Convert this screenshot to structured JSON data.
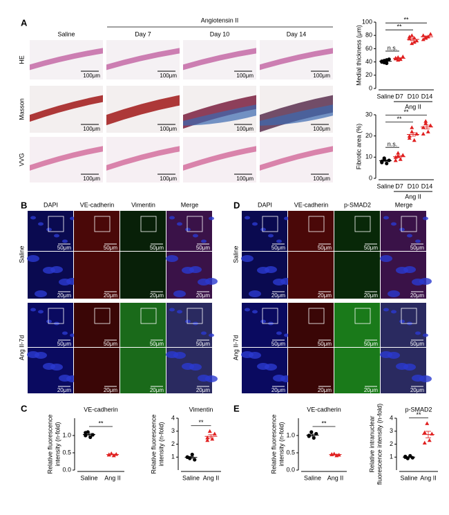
{
  "panel_a": {
    "label": "A",
    "treatment": "Angiotensin II",
    "columns": [
      "Saline",
      "Day 7",
      "Day 10",
      "Day 14"
    ],
    "rows": [
      "HE",
      "Masson",
      "VVG"
    ],
    "scale_bar": "100μm"
  },
  "panel_b": {
    "label": "B",
    "columns": [
      "DAPI",
      "VE-cadherin",
      "Vimentin",
      "Merge"
    ],
    "rows": [
      "Saline",
      "Ang II-7d"
    ],
    "scale_bars": [
      "50μm",
      "20μm"
    ]
  },
  "panel_c": {
    "label": "C"
  },
  "panel_d": {
    "label": "D",
    "columns": [
      "DAPI",
      "VE-cadherin",
      "p-SMAD2",
      "Merge"
    ],
    "rows": [
      "Saline",
      "Ang II-7d"
    ],
    "scale_bars": [
      "50μm",
      "20μm"
    ]
  },
  "panel_e": {
    "label": "E"
  },
  "chart_data": [
    {
      "type": "dot",
      "ylabel": [
        "Medial thickness (μm)"
      ],
      "ylim": [
        0,
        100
      ],
      "yticks": [
        0,
        20,
        40,
        60,
        80,
        100
      ],
      "categories": [
        "Saline",
        "D7",
        "D10",
        "D14"
      ],
      "group_label": "Ang II",
      "colors": [
        "#000000",
        "#e02020",
        "#e02020",
        "#e02020"
      ],
      "markers": [
        "circle",
        "triangle",
        "triangle",
        "triangle"
      ],
      "values": [
        [
          40,
          42,
          38,
          44,
          41,
          39,
          43
        ],
        [
          45,
          47,
          44,
          48,
          46,
          43
        ],
        [
          75,
          80,
          70,
          72,
          78,
          68,
          76
        ],
        [
          80,
          76,
          78,
          82,
          74,
          77
        ]
      ],
      "means": [
        41,
        45.5,
        74,
        78
      ],
      "sems": [
        1,
        0.8,
        2,
        1.2
      ],
      "comparisons": [
        {
          "label": "n.s.",
          "between": [
            "Saline",
            "D7"
          ]
        },
        {
          "label": "**",
          "between": [
            "Saline",
            "D10"
          ]
        },
        {
          "label": "**",
          "between": [
            "Saline",
            "D14"
          ]
        }
      ]
    },
    {
      "type": "dot",
      "ylabel": [
        "Fibrotic area (%)"
      ],
      "ylim": [
        0,
        30
      ],
      "yticks": [
        0,
        10,
        20,
        30
      ],
      "categories": [
        "Saline",
        "D7",
        "D10",
        "D14"
      ],
      "group_label": "Ang II",
      "colors": [
        "#000000",
        "#e02020",
        "#e02020",
        "#e02020"
      ],
      "markers": [
        "circle",
        "triangle",
        "triangle",
        "triangle"
      ],
      "values": [
        [
          8,
          9,
          7,
          8.5,
          7.5,
          9.5
        ],
        [
          10,
          12,
          9,
          11,
          8.5,
          10.5
        ],
        [
          20,
          22,
          18,
          21,
          19,
          24
        ],
        [
          24,
          26,
          22,
          25,
          21,
          27
        ]
      ],
      "means": [
        8.3,
        10.2,
        20.7,
        24.2
      ],
      "sems": [
        0.4,
        0.5,
        0.8,
        0.9
      ],
      "comparisons": [
        {
          "label": "n.s.",
          "between": [
            "Saline",
            "D7"
          ]
        },
        {
          "label": "**",
          "between": [
            "Saline",
            "D10"
          ]
        },
        {
          "label": "**",
          "between": [
            "Saline",
            "D14"
          ]
        }
      ]
    },
    {
      "type": "dot",
      "title": "VE-cadherin",
      "ylabel": [
        "Relative fluorescence",
        "intensity (n-fold)"
      ],
      "ylim": [
        0,
        1.5
      ],
      "yticks": [
        {
          "value": 0,
          "label": "0.0"
        },
        0.5,
        {
          "value": 1,
          "label": "1.0"
        }
      ],
      "categories": [
        "Saline",
        "Ang II"
      ],
      "colors": [
        "#000000",
        "#e02020"
      ],
      "markers": [
        "circle",
        "triangle"
      ],
      "values": [
        [
          1.0,
          1.1,
          0.95,
          1.02,
          1.08
        ],
        [
          0.45,
          0.48,
          0.42,
          0.46,
          0.44
        ]
      ],
      "means": [
        1.03,
        0.45
      ],
      "sems": [
        0.03,
        0.01
      ],
      "comparisons": [
        {
          "label": "**",
          "between": [
            "Saline",
            "Ang II"
          ]
        }
      ]
    },
    {
      "type": "dot",
      "title": "Vimentin",
      "ylabel": [
        "Relative fluorescence",
        "intensity (n-fold)"
      ],
      "ylim": [
        0,
        4
      ],
      "yticks": [
        1,
        2,
        3,
        4
      ],
      "categories": [
        "Saline",
        "Ang II"
      ],
      "colors": [
        "#000000",
        "#e02020"
      ],
      "markers": [
        "circle",
        "triangle"
      ],
      "values": [
        [
          1.0,
          0.9,
          1.2,
          0.8,
          1.0
        ],
        [
          2.5,
          3.0,
          2.4,
          2.8,
          2.3
        ]
      ],
      "means": [
        0.98,
        2.6
      ],
      "sems": [
        0.07,
        0.13
      ],
      "comparisons": [
        {
          "label": "**",
          "between": [
            "Saline",
            "Ang II"
          ]
        }
      ]
    },
    {
      "type": "dot",
      "title": "VE-cadherin",
      "ylabel": [
        "Relative fluorescence",
        "intensity (n-fold)"
      ],
      "ylim": [
        0,
        1.5
      ],
      "yticks": [
        {
          "value": 0,
          "label": "0.0"
        },
        0.5,
        {
          "value": 1,
          "label": "1.0"
        }
      ],
      "categories": [
        "Saline",
        "Ang II"
      ],
      "colors": [
        "#000000",
        "#e02020"
      ],
      "markers": [
        "circle",
        "triangle"
      ],
      "values": [
        [
          1.0,
          1.1,
          0.93,
          1.05,
          0.98
        ],
        [
          0.45,
          0.47,
          0.42,
          0.44,
          0.46
        ]
      ],
      "means": [
        1.01,
        0.45
      ],
      "sems": [
        0.03,
        0.01
      ],
      "comparisons": [
        {
          "label": "**",
          "between": [
            "Saline",
            "Ang II"
          ]
        }
      ]
    },
    {
      "type": "dot",
      "title": "p-SMAD2",
      "ylabel": [
        "Relative intranuclear",
        "fluorescence intensity (n-fold)"
      ],
      "ylim": [
        0,
        4
      ],
      "yticks": [
        1,
        2,
        3,
        4
      ],
      "categories": [
        "Saline",
        "Ang II"
      ],
      "colors": [
        "#000000",
        "#e02020"
      ],
      "markers": [
        "circle",
        "triangle"
      ],
      "values": [
        [
          1.0,
          0.9,
          1.1,
          0.95,
          1.05
        ],
        [
          2.9,
          3.6,
          2.3,
          2.8,
          2.1
        ]
      ],
      "means": [
        1.0,
        2.74
      ],
      "sems": [
        0.04,
        0.25
      ],
      "comparisons": [
        {
          "label": "**",
          "between": [
            "Saline",
            "Ang II"
          ]
        }
      ]
    }
  ]
}
